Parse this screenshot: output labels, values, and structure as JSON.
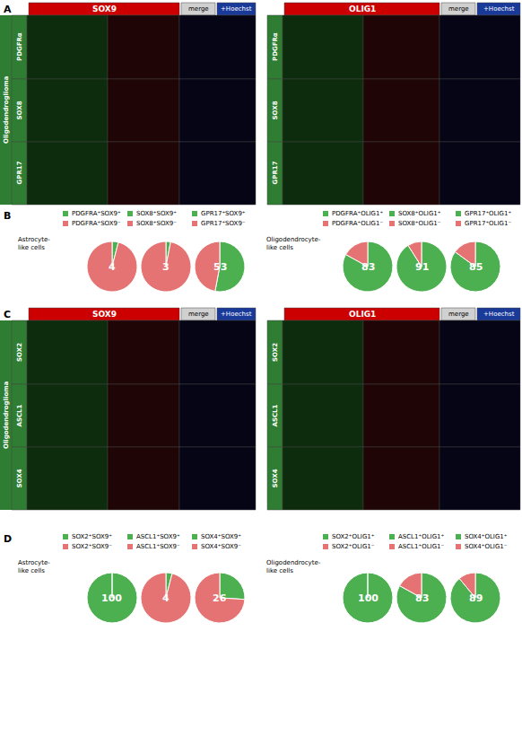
{
  "chart_data": [
    {
      "type": "image_grid",
      "title": "A",
      "subtitle": "Oligodendroglioma",
      "categories": [
        "PDGFRα",
        "SOX8",
        "GPR17"
      ],
      "annotations": [
        "SOX9",
        "OLIG1",
        "merge",
        "+Hoechst"
      ],
      "colors": [
        "#cc0000",
        "#d0d0d0",
        "#1a3a9a",
        "#2e7d32",
        "#0d2b0d",
        "#1f0505",
        "#050515"
      ]
    },
    {
      "type": "pie",
      "title": "B",
      "annotations": [
        "Astrocyte-\nlike cells",
        "Oligodendrocyte-\nlike cells"
      ],
      "colors": [
        "#4caf50",
        "#e57373"
      ],
      "series": [
        {
          "categories": [
            "PDGFRA⁺SOX9⁺",
            "PDGFRA⁺SOX9⁻"
          ],
          "values": [
            4,
            96
          ],
          "value_labels": [
            "4",
            null
          ]
        },
        {
          "categories": [
            "SOX8⁺SOX9⁺",
            "SOX8⁺SOX9⁻"
          ],
          "values": [
            3,
            97
          ],
          "value_labels": [
            "3",
            null
          ]
        },
        {
          "categories": [
            "GPR17⁺SOX9⁺",
            "GPR17⁺SOX9⁻"
          ],
          "values": [
            53,
            47
          ],
          "value_labels": [
            "53",
            null
          ]
        },
        {
          "categories": [
            "PDGFRA⁺OLIG1⁺",
            "PDGFRA⁺OLIG1⁻"
          ],
          "values": [
            83,
            17
          ],
          "value_labels": [
            "83",
            null
          ]
        },
        {
          "categories": [
            "SOX8⁺OLIG1⁺",
            "SOX8⁺OLIG1⁻"
          ],
          "values": [
            91,
            9
          ],
          "value_labels": [
            "91",
            null
          ]
        },
        {
          "categories": [
            "GPR17⁺OLIG1⁺",
            "GPR17⁺OLIG1⁻"
          ],
          "values": [
            85,
            15
          ],
          "value_labels": [
            "85",
            null
          ]
        }
      ]
    },
    {
      "type": "image_grid",
      "title": "C",
      "subtitle": "Oligodendroglioma",
      "categories": [
        "SOX2",
        "ASCL1",
        "SOX4"
      ],
      "annotations": [
        "SOX9",
        "OLIG1",
        "merge",
        "+Hoechst"
      ],
      "colors": [
        "#cc0000",
        "#d0d0d0",
        "#1a3a9a",
        "#2e7d32",
        "#0d2b0d",
        "#1f0505",
        "#050515"
      ]
    },
    {
      "type": "pie",
      "title": "D",
      "annotations": [
        "Astrocyte-\nlike cells",
        "Oligodendrocyte-\nlike cells"
      ],
      "colors": [
        "#4caf50",
        "#e57373"
      ],
      "series": [
        {
          "categories": [
            "SOX2⁺SOX9⁺",
            "SOX2⁺SOX9⁻"
          ],
          "values": [
            100,
            0
          ],
          "value_labels": [
            "100",
            null
          ]
        },
        {
          "categories": [
            "ASCL1⁺SOX9⁺",
            "ASCL1⁺SOX9⁻"
          ],
          "values": [
            4,
            96
          ],
          "value_labels": [
            "4",
            null
          ]
        },
        {
          "categories": [
            "SOX4⁺SOX9⁺",
            "SOX4⁺SOX9⁻"
          ],
          "values": [
            26,
            74
          ],
          "value_labels": [
            "26",
            null
          ]
        },
        {
          "categories": [
            "SOX2⁺OLIG1⁺",
            "SOX2⁺OLIG1⁻"
          ],
          "values": [
            100,
            0
          ],
          "value_labels": [
            "100",
            null
          ]
        },
        {
          "categories": [
            "ASCL1⁺OLIG1⁺",
            "ASCL1⁺OLIG1⁻"
          ],
          "values": [
            83,
            17
          ],
          "value_labels": [
            "83",
            null
          ]
        },
        {
          "categories": [
            "SOX4⁺OLIG1⁺",
            "SOX4⁺OLIG1⁻"
          ],
          "values": [
            89,
            11
          ],
          "value_labels": [
            "89",
            null
          ]
        }
      ]
    }
  ]
}
